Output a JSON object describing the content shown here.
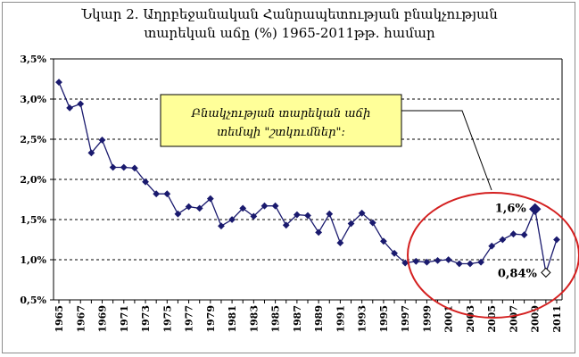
{
  "title": {
    "line1": "Նկար 2. Աղրբեջանական Հանրապետության բնակչության",
    "line2": "տարեկան աճը (%) 1965-2011թթ. համար"
  },
  "callout": {
    "line1": "Բնակչության տարեկան աճի",
    "line2": "տեմպի \"շտկումներ\":"
  },
  "colors": {
    "series": "#1a1a6e",
    "ellipse": "#d42020",
    "callout_fill": "#ffff99",
    "grid": "#000000"
  },
  "chart_data": {
    "type": "line",
    "title": "Նկար 2. Աղրբեջանական Հանրապետության բնակչության տարեկան աճը (%) 1965-2011թթ. համար",
    "xlabel": "",
    "ylabel": "",
    "ylim": [
      0.5,
      3.5
    ],
    "y_ticks": [
      "0,5%",
      "1,0%",
      "1,5%",
      "2,0%",
      "2,5%",
      "3,0%",
      "3,5%"
    ],
    "x_ticks": [
      "1965",
      "1967",
      "1969",
      "1971",
      "1973",
      "1975",
      "1977",
      "1979",
      "1981",
      "1983",
      "1985",
      "1987",
      "1989",
      "1991",
      "1993",
      "1995",
      "1997",
      "1999",
      "2001",
      "2003",
      "2005",
      "2007",
      "2009",
      "2011"
    ],
    "grid": "horizontal dashed",
    "x": [
      1965,
      1966,
      1967,
      1968,
      1969,
      1970,
      1971,
      1972,
      1973,
      1974,
      1975,
      1976,
      1977,
      1978,
      1979,
      1980,
      1981,
      1982,
      1983,
      1984,
      1985,
      1986,
      1987,
      1988,
      1989,
      1990,
      1991,
      1992,
      1993,
      1994,
      1995,
      1996,
      1997,
      1998,
      1999,
      2000,
      2001,
      2002,
      2003,
      2004,
      2005,
      2006,
      2007,
      2008,
      2009,
      2010,
      2011
    ],
    "values": [
      3.21,
      2.89,
      2.94,
      2.33,
      2.49,
      2.15,
      2.15,
      2.14,
      1.97,
      1.82,
      1.82,
      1.57,
      1.66,
      1.64,
      1.76,
      1.42,
      1.5,
      1.64,
      1.54,
      1.67,
      1.67,
      1.43,
      1.56,
      1.55,
      1.34,
      1.57,
      1.21,
      1.45,
      1.58,
      1.46,
      1.23,
      1.08,
      0.96,
      0.98,
      0.97,
      0.99,
      1.0,
      0.95,
      0.95,
      0.97,
      1.17,
      1.25,
      1.32,
      1.31,
      1.63,
      0.84,
      1.25
    ],
    "annotations": [
      {
        "text": "1,6%",
        "x": 2009,
        "y": 1.63
      },
      {
        "text": "0,84%",
        "x": 2010,
        "y": 0.84
      }
    ]
  }
}
